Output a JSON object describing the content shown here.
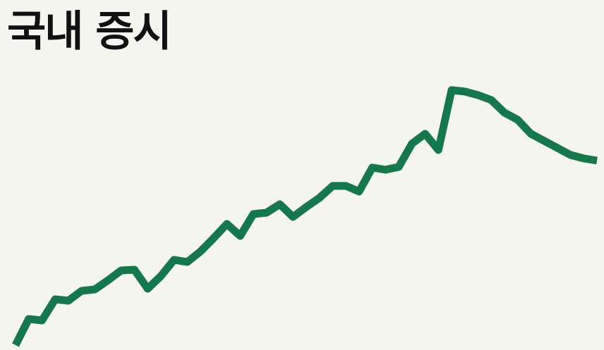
{
  "title": "국내 증시",
  "colors": {
    "background": "#f5f5f0",
    "line": "#15774c",
    "title": "#111111"
  },
  "chart_data": {
    "type": "line",
    "title": "국내 증시",
    "xlabel": "",
    "ylabel": "",
    "grid": false,
    "axes_visible": false,
    "x": [
      0,
      1,
      2,
      3,
      4,
      5,
      6,
      7,
      8,
      9,
      10,
      11,
      12,
      13,
      14,
      15,
      16,
      17,
      18,
      19,
      20,
      21,
      22,
      23,
      24,
      25,
      26,
      27,
      28,
      29,
      30,
      31,
      32,
      33,
      34,
      35,
      36,
      37,
      38,
      39,
      40,
      41,
      42,
      43,
      44
    ],
    "series": [
      {
        "values": [
          0,
          37,
          35,
          65,
          63,
          77,
          79,
          92,
          106,
          107,
          80,
          98,
          121,
          118,
          133,
          152,
          172,
          155,
          186,
          188,
          200,
          182,
          196,
          209,
          226,
          226,
          218,
          252,
          249,
          253,
          286,
          300,
          277,
          362,
          360,
          355,
          348,
          330,
          320,
          300,
          290,
          280,
          270,
          265,
          262
        ],
        "color": "#15774c"
      }
    ],
    "xlim": [
      0,
      44
    ],
    "ylim": [
      0,
      470
    ]
  }
}
